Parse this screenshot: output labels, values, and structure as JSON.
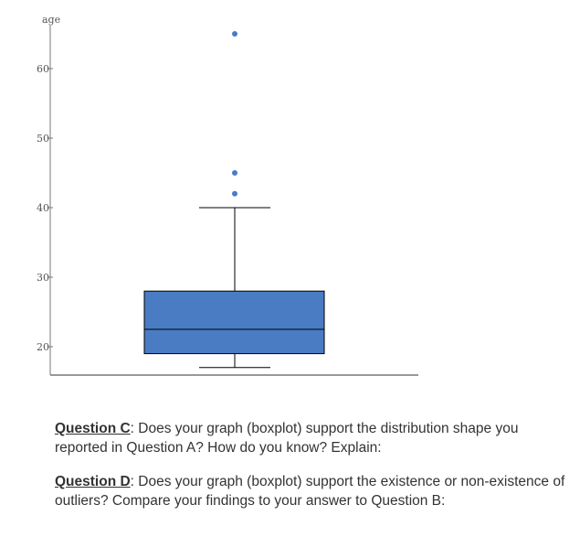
{
  "chart_data": {
    "type": "boxplot",
    "ylabel": "age",
    "yticks": [
      20,
      30,
      40,
      50,
      60
    ],
    "ylim": [
      16,
      66
    ],
    "box": {
      "whisker_low": 17,
      "q1": 19,
      "median": 22.5,
      "q3": 28,
      "whisker_high": 40
    },
    "outliers": [
      42,
      45,
      65
    ],
    "box_color": "#4a7cc4",
    "outlier_color": "#4a7cc4",
    "grid": false
  },
  "questions": {
    "c": {
      "label": "Question C",
      "text": ": Does your graph (boxplot) support the distribution shape you reported in Question A? How do you know? Explain:"
    },
    "d": {
      "label": "Question D",
      "text": ": Does your graph (boxplot) support the existence or non-existence of outliers? Compare your findings to your answer to Question B:"
    }
  }
}
